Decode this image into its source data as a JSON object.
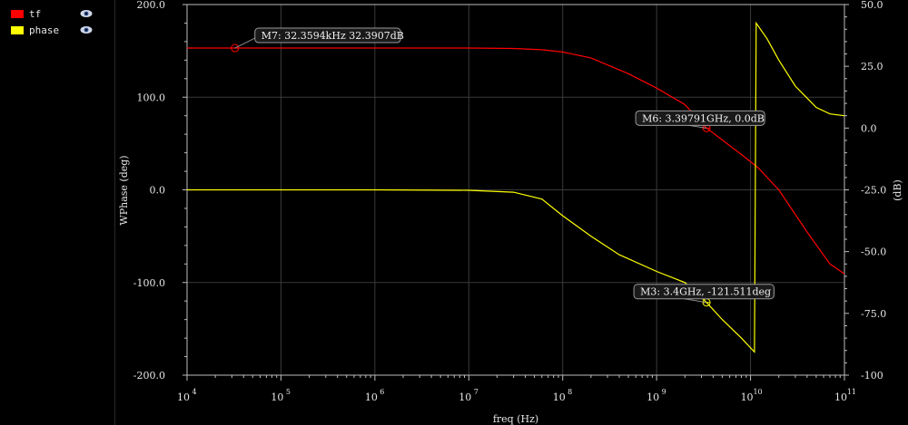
{
  "legend": {
    "items": [
      {
        "label": "tf",
        "color": "#ff0000"
      },
      {
        "label": "phase",
        "color": "#ffff00"
      }
    ]
  },
  "chart_data": {
    "type": "line",
    "xscale": "log",
    "xlabel": "freq (Hz)",
    "xlim": [
      10000,
      100000000000
    ],
    "x_ticks": [
      "10",
      "10",
      "10",
      "10",
      "10",
      "10",
      "10",
      "10"
    ],
    "x_tick_exponents": [
      "4",
      "5",
      "6",
      "7",
      "8",
      "9",
      "10",
      "11"
    ],
    "left_axis": {
      "label": "WPhase (deg)",
      "ylim": [
        -200,
        200
      ],
      "ticks": [
        "200.0",
        "100.0",
        "0.0",
        "-100.0",
        "-200.0"
      ]
    },
    "right_axis": {
      "label": "(dB)",
      "ylim": [
        -100,
        50
      ],
      "ticks": [
        "50.0",
        "25.0",
        "0.0",
        "-25.0",
        "-50.0",
        "-75.0",
        "-100"
      ]
    },
    "series": [
      {
        "name": "tf",
        "axis": "right",
        "color": "#ff0000",
        "x": [
          10000,
          100000,
          1000000,
          10000000,
          30000000,
          60000000,
          100000000,
          200000000,
          500000000,
          1000000000,
          2000000000,
          3400000000,
          5000000000,
          8000000000,
          12000000000,
          20000000000,
          40000000000,
          70000000000,
          100000000000
        ],
        "y": [
          32.4,
          32.4,
          32.4,
          32.4,
          32.2,
          31.7,
          30.8,
          28.4,
          22.0,
          16.2,
          9.5,
          0.0,
          -4.8,
          -10.7,
          -16.0,
          -25.0,
          -42.0,
          -55.0,
          -59.0
        ]
      },
      {
        "name": "phase",
        "axis": "left",
        "color": "#ffff00",
        "x": [
          10000,
          100000,
          1000000,
          10000000,
          30000000,
          60000000,
          100000000,
          200000000,
          400000000,
          1000000000,
          2000000000,
          3400000000,
          5000000000,
          8000000000,
          11000000000,
          11500000000,
          15000000000,
          20000000000,
          30000000000,
          50000000000,
          70000000000,
          100000000000
        ],
        "y": [
          0,
          0,
          0,
          -0.5,
          -2.5,
          -10,
          -28,
          -50,
          -70,
          -88,
          -100,
          -121.5,
          -140,
          -160,
          -175,
          180,
          163,
          140,
          112,
          89,
          82,
          80
        ]
      }
    ],
    "markers": [
      {
        "label": "M7: 32.3594kHz 32.3907dB",
        "x": 32359.4,
        "y": 32.3907,
        "axis": "right",
        "color": "#ff0000"
      },
      {
        "label": "M6: 3.39791GHz, 0.0dB",
        "x": 3397910000,
        "y": 0.0,
        "axis": "right",
        "color": "#ff0000"
      },
      {
        "label": "M3: 3.4GHz, -121.511deg",
        "x": 3400000000,
        "y": -121.511,
        "axis": "left",
        "color": "#ffff00"
      }
    ]
  }
}
